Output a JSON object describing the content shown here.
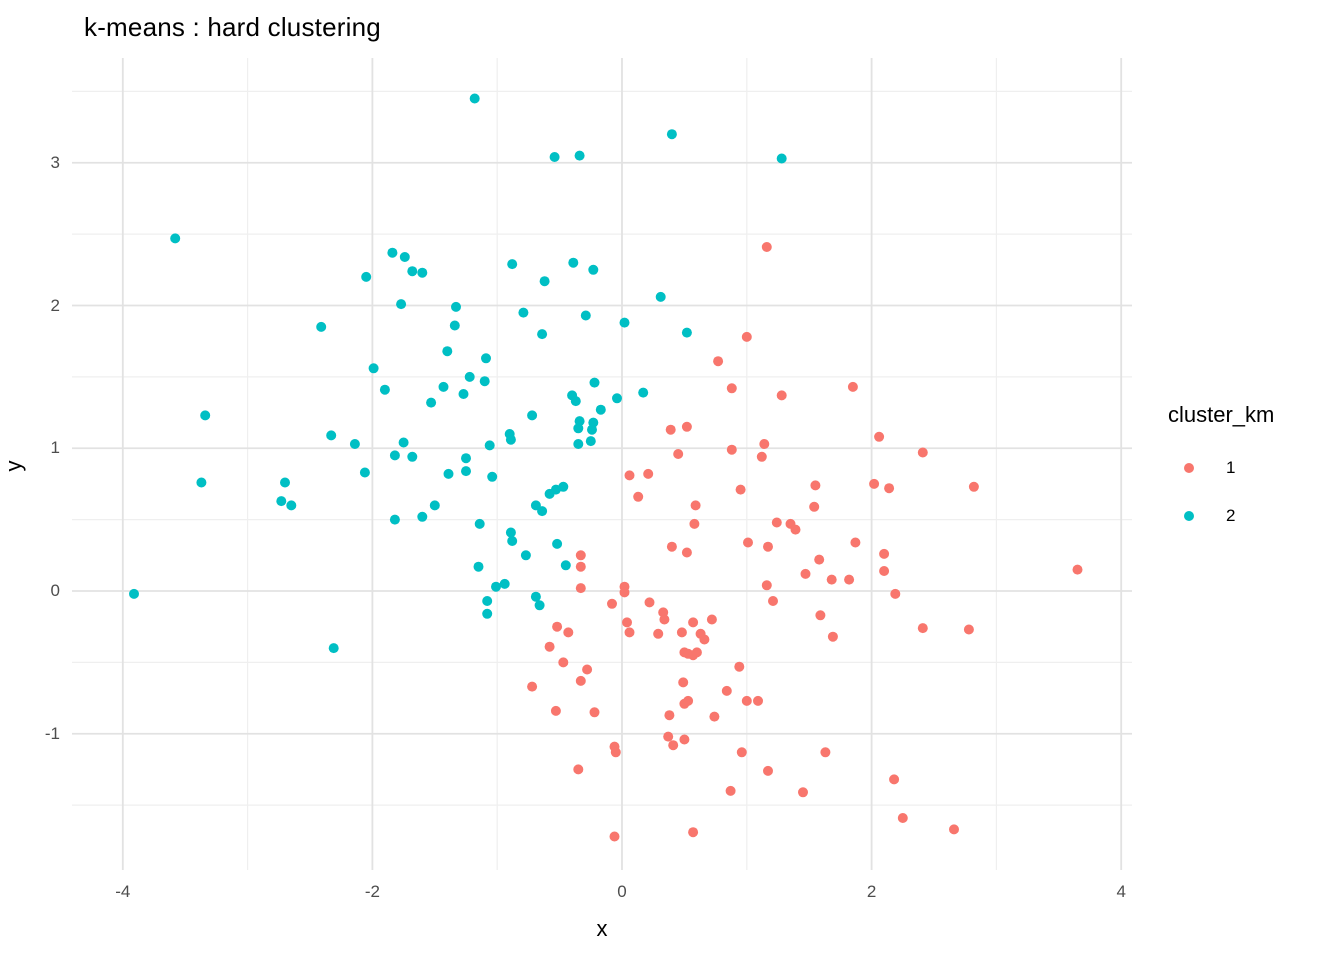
{
  "title": "k-means : hard clustering",
  "legend": {
    "title": "cluster_km",
    "items": [
      {
        "label": "1",
        "color": "#F8766D"
      },
      {
        "label": "2",
        "color": "#00BFC4"
      }
    ]
  },
  "axes": {
    "x": {
      "label": "x",
      "ticks": [
        "-4",
        "-2",
        "0",
        "2",
        "4"
      ]
    },
    "y": {
      "label": "y",
      "ticks": [
        "-1",
        "0",
        "1",
        "2",
        "3"
      ]
    }
  },
  "colors": {
    "cluster1": "#F8766D",
    "cluster2": "#00BFC4",
    "grid_major": "#e2e2e2",
    "grid_minor": "#efefef",
    "tick_text": "#4d4d4d"
  },
  "chart_data": {
    "type": "scatter",
    "title": "k-means : hard clustering",
    "xlabel": "x",
    "ylabel": "y",
    "xlim": [
      -4.4,
      4.06
    ],
    "ylim": [
      -1.95,
      3.73
    ],
    "x_major_ticks": [
      -4,
      -2,
      0,
      2,
      4
    ],
    "x_minor_ticks": [
      -3,
      -1,
      1,
      3
    ],
    "y_major_ticks": [
      -1,
      0,
      1,
      2,
      3
    ],
    "y_minor_ticks": [
      -1.5,
      -0.5,
      0.5,
      1.5,
      2.5,
      3.5
    ],
    "grid": true,
    "legend_title": "cluster_km",
    "legend_position": "right",
    "point_radius_px": 5,
    "series": [
      {
        "name": "1",
        "color": "#F8766D",
        "points": [
          [
            1.16,
            2.41
          ],
          [
            1.0,
            1.78
          ],
          [
            0.77,
            1.61
          ],
          [
            0.88,
            1.42
          ],
          [
            1.28,
            1.37
          ],
          [
            1.85,
            1.43
          ],
          [
            0.39,
            1.13
          ],
          [
            0.52,
            1.15
          ],
          [
            1.14,
            1.03
          ],
          [
            0.88,
            0.99
          ],
          [
            0.45,
            0.96
          ],
          [
            1.12,
            0.94
          ],
          [
            2.06,
            1.08
          ],
          [
            2.41,
            0.97
          ],
          [
            0.06,
            0.81
          ],
          [
            0.21,
            0.82
          ],
          [
            0.13,
            0.66
          ],
          [
            0.95,
            0.71
          ],
          [
            0.59,
            0.6
          ],
          [
            0.58,
            0.47
          ],
          [
            0.4,
            0.31
          ],
          [
            0.52,
            0.27
          ],
          [
            1.01,
            0.34
          ],
          [
            1.17,
            0.31
          ],
          [
            1.16,
            0.04
          ],
          [
            1.21,
            -0.07
          ],
          [
            -0.33,
            0.25
          ],
          [
            -0.33,
            0.17
          ],
          [
            -0.33,
            0.02
          ],
          [
            0.02,
            0.03
          ],
          [
            0.02,
            -0.01
          ],
          [
            -0.08,
            -0.09
          ],
          [
            0.22,
            -0.08
          ],
          [
            0.33,
            -0.15
          ],
          [
            0.34,
            -0.2
          ],
          [
            0.04,
            -0.22
          ],
          [
            0.06,
            -0.29
          ],
          [
            0.29,
            -0.3
          ],
          [
            0.48,
            -0.29
          ],
          [
            0.57,
            -0.22
          ],
          [
            0.63,
            -0.3
          ],
          [
            0.66,
            -0.34
          ],
          [
            0.5,
            -0.43
          ],
          [
            0.53,
            -0.44
          ],
          [
            0.57,
            -0.45
          ],
          [
            0.6,
            -0.43
          ],
          [
            0.72,
            -0.2
          ],
          [
            -0.52,
            -0.25
          ],
          [
            -0.43,
            -0.29
          ],
          [
            -0.58,
            -0.39
          ],
          [
            -0.47,
            -0.5
          ],
          [
            -0.28,
            -0.55
          ],
          [
            -0.33,
            -0.63
          ],
          [
            -0.72,
            -0.67
          ],
          [
            0.94,
            -0.53
          ],
          [
            0.49,
            -0.64
          ],
          [
            0.5,
            -0.79
          ],
          [
            0.53,
            -0.77
          ],
          [
            0.38,
            -0.87
          ],
          [
            0.74,
            -0.88
          ],
          [
            0.84,
            -0.7
          ],
          [
            1.0,
            -0.77
          ],
          [
            1.09,
            -0.77
          ],
          [
            -0.53,
            -0.84
          ],
          [
            -0.22,
            -0.85
          ],
          [
            0.37,
            -1.02
          ],
          [
            0.41,
            -1.08
          ],
          [
            0.5,
            -1.04
          ],
          [
            -0.06,
            -1.09
          ],
          [
            -0.05,
            -1.13
          ],
          [
            -0.35,
            -1.25
          ],
          [
            0.96,
            -1.13
          ],
          [
            1.17,
            -1.26
          ],
          [
            0.87,
            -1.4
          ],
          [
            -0.06,
            -1.72
          ],
          [
            0.57,
            -1.69
          ],
          [
            1.55,
            0.74
          ],
          [
            2.02,
            0.75
          ],
          [
            2.14,
            0.72
          ],
          [
            2.82,
            0.73
          ],
          [
            1.54,
            0.59
          ],
          [
            1.24,
            0.48
          ],
          [
            1.35,
            0.47
          ],
          [
            1.39,
            0.43
          ],
          [
            1.87,
            0.34
          ],
          [
            2.1,
            0.26
          ],
          [
            1.58,
            0.22
          ],
          [
            2.1,
            0.14
          ],
          [
            3.65,
            0.15
          ],
          [
            1.47,
            0.12
          ],
          [
            1.68,
            0.08
          ],
          [
            1.82,
            0.08
          ],
          [
            2.19,
            -0.02
          ],
          [
            1.59,
            -0.17
          ],
          [
            2.41,
            -0.26
          ],
          [
            2.78,
            -0.27
          ],
          [
            1.69,
            -0.32
          ],
          [
            1.63,
            -1.13
          ],
          [
            1.45,
            -1.41
          ],
          [
            2.18,
            -1.32
          ],
          [
            2.25,
            -1.59
          ],
          [
            2.66,
            -1.67
          ]
        ]
      },
      {
        "name": "2",
        "color": "#00BFC4",
        "points": [
          [
            -1.18,
            3.45
          ],
          [
            0.4,
            3.2
          ],
          [
            -0.54,
            3.04
          ],
          [
            -0.34,
            3.05
          ],
          [
            1.28,
            3.03
          ],
          [
            -3.58,
            2.47
          ],
          [
            -1.84,
            2.37
          ],
          [
            -1.74,
            2.34
          ],
          [
            -1.68,
            2.24
          ],
          [
            -1.6,
            2.23
          ],
          [
            -2.05,
            2.2
          ],
          [
            -0.88,
            2.29
          ],
          [
            -0.39,
            2.3
          ],
          [
            -0.23,
            2.25
          ],
          [
            -0.62,
            2.17
          ],
          [
            0.31,
            2.06
          ],
          [
            -1.77,
            2.01
          ],
          [
            -1.33,
            1.99
          ],
          [
            -0.79,
            1.95
          ],
          [
            -0.29,
            1.93
          ],
          [
            0.02,
            1.88
          ],
          [
            -1.34,
            1.86
          ],
          [
            -2.41,
            1.85
          ],
          [
            -0.64,
            1.8
          ],
          [
            0.52,
            1.81
          ],
          [
            -1.4,
            1.68
          ],
          [
            -1.09,
            1.63
          ],
          [
            -1.99,
            1.56
          ],
          [
            -1.22,
            1.5
          ],
          [
            -1.1,
            1.47
          ],
          [
            -1.43,
            1.43
          ],
          [
            -1.9,
            1.41
          ],
          [
            -1.27,
            1.38
          ],
          [
            -1.53,
            1.32
          ],
          [
            -0.22,
            1.46
          ],
          [
            -0.4,
            1.37
          ],
          [
            -0.37,
            1.33
          ],
          [
            -0.04,
            1.35
          ],
          [
            0.17,
            1.39
          ],
          [
            -0.17,
            1.27
          ],
          [
            -3.34,
            1.23
          ],
          [
            -0.72,
            1.23
          ],
          [
            -0.34,
            1.19
          ],
          [
            -0.35,
            1.14
          ],
          [
            -0.23,
            1.18
          ],
          [
            -0.24,
            1.13
          ],
          [
            -2.33,
            1.09
          ],
          [
            -0.9,
            1.1
          ],
          [
            -0.89,
            1.06
          ],
          [
            -2.14,
            1.03
          ],
          [
            -1.75,
            1.04
          ],
          [
            -1.06,
            1.02
          ],
          [
            -0.35,
            1.03
          ],
          [
            -0.25,
            1.05
          ],
          [
            -1.82,
            0.95
          ],
          [
            -1.68,
            0.94
          ],
          [
            -1.25,
            0.93
          ],
          [
            -1.25,
            0.84
          ],
          [
            -2.06,
            0.83
          ],
          [
            -3.37,
            0.76
          ],
          [
            -2.7,
            0.76
          ],
          [
            -1.39,
            0.82
          ],
          [
            -1.04,
            0.8
          ],
          [
            -2.73,
            0.63
          ],
          [
            -2.65,
            0.6
          ],
          [
            -1.82,
            0.5
          ],
          [
            -1.6,
            0.52
          ],
          [
            -1.5,
            0.6
          ],
          [
            -0.69,
            0.6
          ],
          [
            -0.64,
            0.56
          ],
          [
            -0.58,
            0.68
          ],
          [
            -0.53,
            0.71
          ],
          [
            -0.47,
            0.73
          ],
          [
            -1.14,
            0.47
          ],
          [
            -0.89,
            0.41
          ],
          [
            -0.88,
            0.35
          ],
          [
            -0.77,
            0.25
          ],
          [
            -0.52,
            0.33
          ],
          [
            -1.15,
            0.17
          ],
          [
            -0.45,
            0.18
          ],
          [
            -1.01,
            0.03
          ],
          [
            -0.94,
            0.05
          ],
          [
            -3.91,
            -0.02
          ],
          [
            -1.08,
            -0.07
          ],
          [
            -0.69,
            -0.04
          ],
          [
            -0.66,
            -0.1
          ],
          [
            -1.08,
            -0.16
          ],
          [
            -2.31,
            -0.4
          ]
        ]
      }
    ]
  }
}
